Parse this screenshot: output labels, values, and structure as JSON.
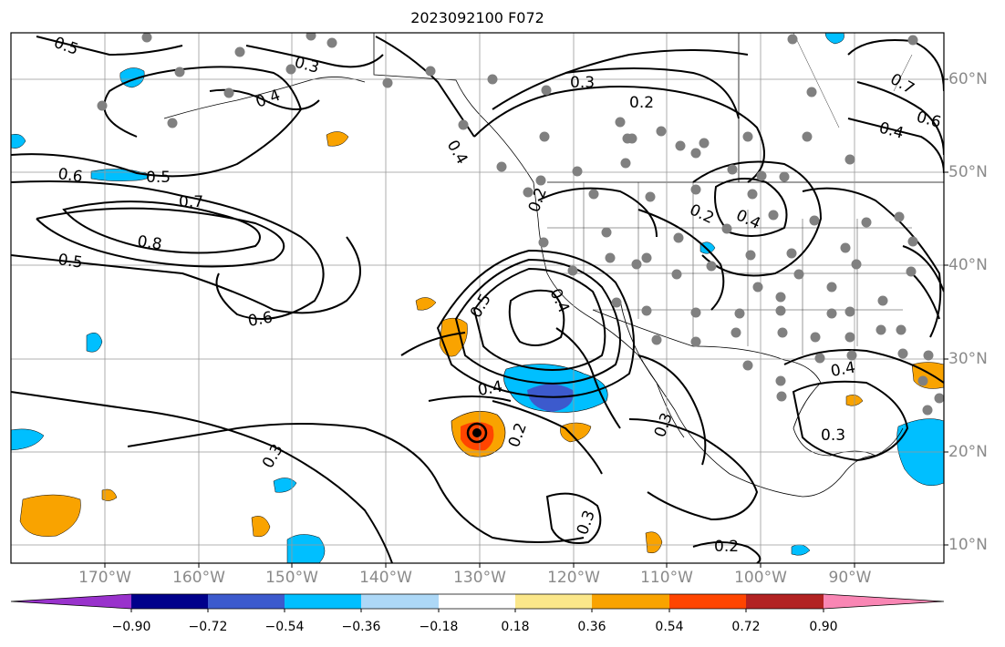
{
  "title": "2023092100 F072",
  "map": {
    "lon_ticks": [
      "170°W",
      "160°W",
      "150°W",
      "140°W",
      "130°W",
      "120°W",
      "110°W",
      "100°W",
      "90°W"
    ],
    "lat_ticks": [
      "60°N",
      "50°N",
      "40°N",
      "30°N",
      "20°N",
      "10°N"
    ],
    "contour_labels": [
      "0.5",
      "0.3",
      "0.4",
      "0.6",
      "0.5",
      "0.7",
      "0.8",
      "0.5",
      "0.6",
      "0.3",
      "0.2",
      "0.4",
      "0.2",
      "0.4",
      "0.5",
      "0.4",
      "0.2",
      "0.3",
      "0.3",
      "0.3",
      "0.3",
      "0.2",
      "0.7",
      "0.6",
      "0.4",
      "0.4",
      "0.2",
      "0.4"
    ]
  },
  "colorbar": {
    "ticks": [
      "−0.90",
      "−0.72",
      "−0.54",
      "−0.36",
      "−0.18",
      "0.18",
      "0.36",
      "0.54",
      "0.72",
      "0.90"
    ],
    "colors": [
      "#9932cc",
      "#00008b",
      "#3c5acd",
      "#00bfff",
      "#add8f7",
      "#ffffff",
      "#fbe78a",
      "#f9a300",
      "#ff4500",
      "#b22222",
      "#f986b4"
    ]
  }
}
